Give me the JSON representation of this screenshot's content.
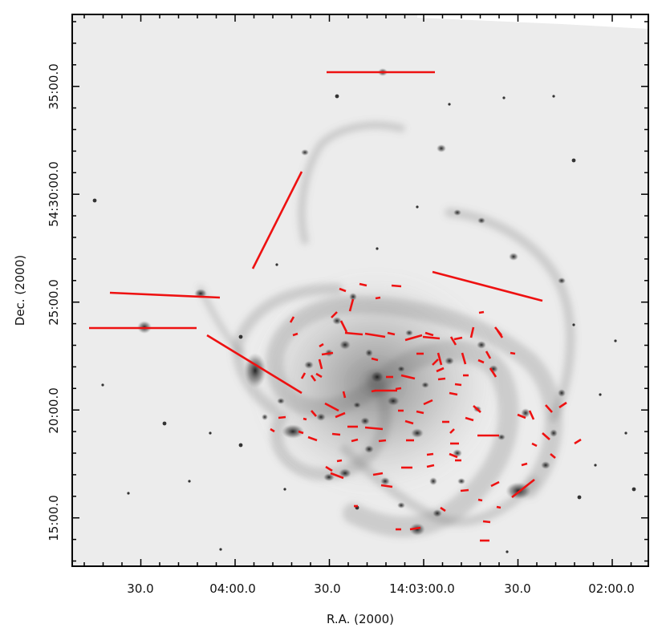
{
  "figure": {
    "xlabel": "R.A. (2000)",
    "ylabel": "Dec. (2000)",
    "x_tick_labels": [
      "30.0",
      "04:00.0",
      "30.0",
      "14:03:00.0",
      "30.0",
      "02:00.0"
    ],
    "y_tick_labels": [
      "35:00.0",
      "54:30:00.0",
      "25:00.0",
      "20:00.0",
      "15:00.0"
    ],
    "image_colormap": "inverted grayscale",
    "vector_color": "#ee1111",
    "vector_count": 110
  }
}
